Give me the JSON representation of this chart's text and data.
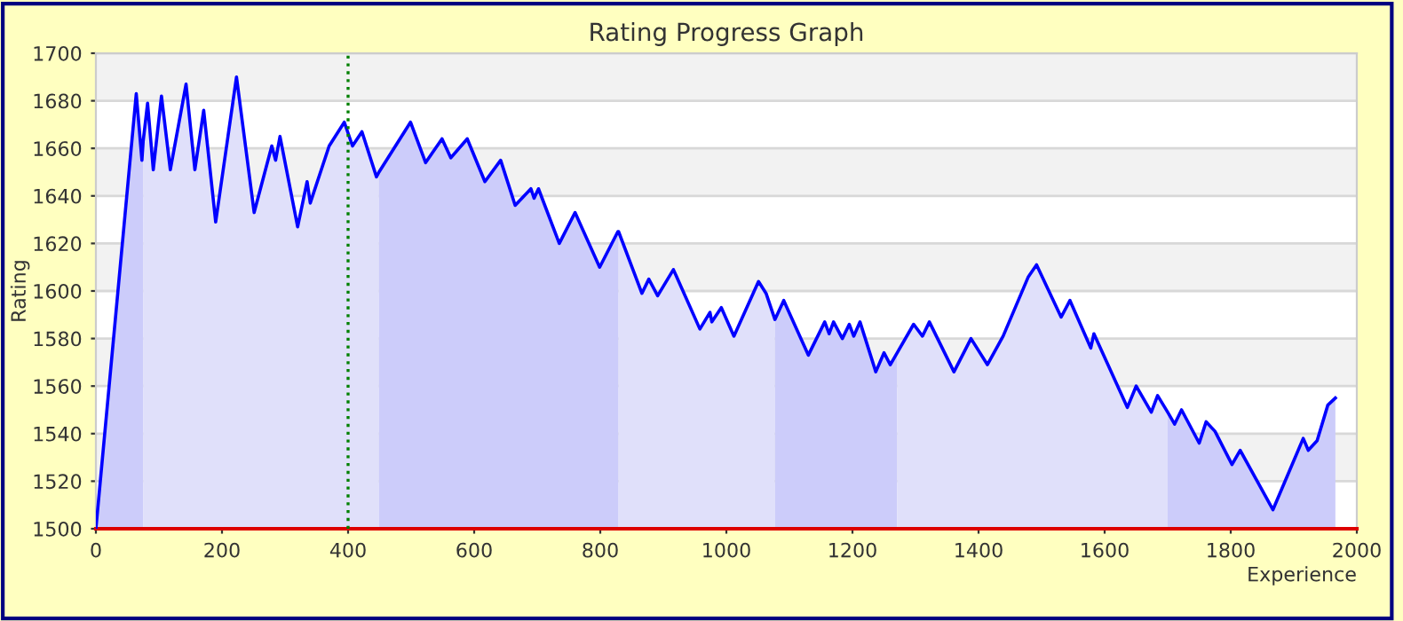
{
  "chart_data": {
    "type": "line",
    "title": "Rating Progress Graph",
    "xlabel": "Experience",
    "ylabel": "Rating",
    "xlim": [
      0,
      2000
    ],
    "xticks": [
      0,
      200,
      400,
      600,
      800,
      1000,
      1200,
      1400,
      1600,
      1800,
      2000
    ],
    "ylim": [
      1500,
      1700
    ],
    "yticks": [
      1500,
      1520,
      1540,
      1560,
      1580,
      1600,
      1620,
      1640,
      1660,
      1680,
      1700
    ],
    "grid": "y",
    "legend": false,
    "marker": "none",
    "line_style": "solid",
    "bands": [
      {
        "axis": "y",
        "from": 1520,
        "to": 1540,
        "color": "#f2f2f2"
      },
      {
        "axis": "y",
        "from": 1560,
        "to": 1580,
        "color": "#f2f2f2"
      },
      {
        "axis": "y",
        "from": 1600,
        "to": 1620,
        "color": "#f2f2f2"
      },
      {
        "axis": "y",
        "from": 1640,
        "to": 1660,
        "color": "#f2f2f2"
      },
      {
        "axis": "y",
        "from": 1680,
        "to": 1700,
        "color": "#f2f2f2"
      }
    ],
    "ref_lines": [
      {
        "axis": "x",
        "value": 400,
        "color": "#008000",
        "line_style": "dotted"
      }
    ],
    "series": [
      {
        "type": "area",
        "color": "#ccccfa",
        "x": [
          0,
          64,
          73,
          75
        ],
        "values": [
          1500,
          1683,
          1655,
          1663
        ]
      },
      {
        "type": "area",
        "color": "#e0e0fa",
        "x": [
          75,
          82,
          91,
          104,
          118,
          143,
          157,
          171,
          190,
          223,
          251,
          279,
          285,
          292,
          320,
          335,
          340,
          370,
          394,
          407,
          422,
          445,
          449
        ],
        "values": [
          1663,
          1679,
          1651,
          1682,
          1651,
          1687,
          1651,
          1676,
          1629,
          1690,
          1633,
          1661,
          1655,
          1665,
          1627,
          1646,
          1637,
          1661,
          1671,
          1661,
          1667,
          1648,
          1650
        ]
      },
      {
        "type": "area",
        "color": "#ccccfa",
        "x": [
          449,
          499,
          523,
          549,
          563,
          589,
          617,
          642,
          665,
          690,
          695,
          702,
          735,
          760,
          799,
          828,
          829
        ],
        "values": [
          1650,
          1671,
          1654,
          1664,
          1656,
          1664,
          1646,
          1655,
          1636,
          1643,
          1639,
          1643,
          1620,
          1633,
          1610,
          1625,
          1625
        ]
      },
      {
        "type": "area",
        "color": "#e0e0fa",
        "x": [
          829,
          866,
          877,
          891,
          916,
          958,
          974,
          977,
          992,
          1012,
          1051,
          1063,
          1077
        ],
        "values": [
          1625,
          1599,
          1605,
          1598,
          1609,
          1584,
          1591,
          1587,
          1593,
          1581,
          1604,
          1599,
          1588
        ]
      },
      {
        "type": "area",
        "color": "#ccccfa",
        "x": [
          1077,
          1091,
          1130,
          1156,
          1163,
          1170,
          1184,
          1195,
          1202,
          1212,
          1237,
          1250,
          1260,
          1271
        ],
        "values": [
          1588,
          1596,
          1573,
          1587,
          1582,
          1587,
          1580,
          1586,
          1581,
          1587,
          1566,
          1574,
          1569,
          1574
        ]
      },
      {
        "type": "area",
        "color": "#e0e0fa",
        "x": [
          1271,
          1297,
          1311,
          1322,
          1361,
          1388,
          1414,
          1439,
          1479,
          1492,
          1531,
          1545,
          1578,
          1583,
          1636,
          1650,
          1674,
          1684,
          1700
        ],
        "values": [
          1574,
          1586,
          1581,
          1587,
          1566,
          1580,
          1569,
          1581,
          1606,
          1611,
          1589,
          1596,
          1576,
          1582,
          1551,
          1560,
          1549,
          1556,
          1549
        ]
      },
      {
        "type": "area",
        "color": "#ccccfa",
        "x": [
          1700,
          1711,
          1722,
          1750,
          1761,
          1775,
          1802,
          1815,
          1867,
          1915,
          1923,
          1937,
          1954,
          1966
        ],
        "values": [
          1549,
          1544,
          1550,
          1536,
          1545,
          1541,
          1527,
          1533,
          1508,
          1538,
          1533,
          1537,
          1552,
          1555
        ]
      },
      {
        "color": "#0000ff",
        "x": [
          0,
          64,
          73,
          75,
          82,
          91,
          104,
          118,
          143,
          157,
          171,
          190,
          223,
          251,
          279,
          285,
          292,
          320,
          335,
          340,
          370,
          394,
          407,
          422,
          445,
          449,
          499,
          523,
          549,
          563,
          589,
          617,
          642,
          665,
          690,
          695,
          702,
          735,
          760,
          799,
          828,
          829,
          866,
          877,
          891,
          916,
          958,
          974,
          977,
          992,
          1012,
          1051,
          1063,
          1077,
          1091,
          1130,
          1156,
          1163,
          1170,
          1184,
          1195,
          1202,
          1212,
          1237,
          1250,
          1260,
          1271,
          1297,
          1311,
          1322,
          1361,
          1388,
          1414,
          1439,
          1479,
          1492,
          1531,
          1545,
          1578,
          1583,
          1636,
          1650,
          1674,
          1684,
          1700,
          1711,
          1722,
          1750,
          1761,
          1775,
          1802,
          1815,
          1867,
          1915,
          1923,
          1937,
          1954,
          1966
        ],
        "values": [
          1500,
          1683,
          1655,
          1663,
          1679,
          1651,
          1682,
          1651,
          1687,
          1651,
          1676,
          1629,
          1690,
          1633,
          1661,
          1655,
          1665,
          1627,
          1646,
          1637,
          1661,
          1671,
          1661,
          1667,
          1648,
          1650,
          1671,
          1654,
          1664,
          1656,
          1664,
          1646,
          1655,
          1636,
          1643,
          1639,
          1643,
          1620,
          1633,
          1610,
          1625,
          1625,
          1599,
          1605,
          1598,
          1609,
          1584,
          1591,
          1587,
          1593,
          1581,
          1604,
          1599,
          1588,
          1596,
          1573,
          1587,
          1582,
          1587,
          1580,
          1586,
          1581,
          1587,
          1566,
          1574,
          1569,
          1574,
          1586,
          1581,
          1587,
          1566,
          1580,
          1569,
          1581,
          1606,
          1611,
          1589,
          1596,
          1576,
          1582,
          1551,
          1560,
          1549,
          1556,
          1549,
          1544,
          1550,
          1536,
          1545,
          1541,
          1527,
          1533,
          1508,
          1538,
          1533,
          1537,
          1552,
          1555
        ]
      }
    ]
  }
}
